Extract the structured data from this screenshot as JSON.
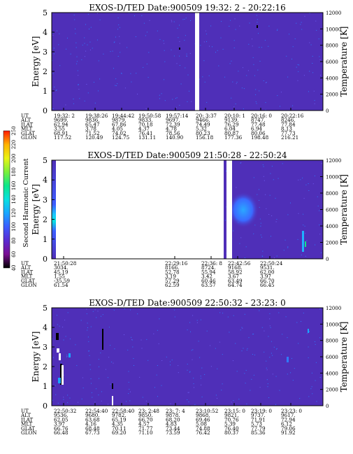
{
  "colors": {
    "background": "#4f2fb8",
    "gap": "#ffffff",
    "speckle": "#2f7bff",
    "axis": "#000000"
  },
  "colorbar": {
    "label": "Second Harmonic Current",
    "ticks": [
      "40",
      "60",
      "80",
      "100",
      "120",
      "140",
      "160",
      "180",
      "200",
      "220",
      "250"
    ],
    "stops": [
      "#000000",
      "#7a0d93",
      "#5a2bd1",
      "#3c5cff",
      "#19a6ff",
      "#08e0e0",
      "#0de78a",
      "#7bf03a",
      "#e9f414",
      "#ffb300",
      "#ff1a00"
    ]
  },
  "orbit_labels": [
    "UT",
    "ALT",
    "ILAT",
    "MLT",
    "GLAT",
    "GLON"
  ],
  "chart_data": [
    {
      "type": "heatmap",
      "title": "EXOS-D/TED   Date:900509  19:32: 2 - 20:22:16",
      "ylabel": "Energy [eV]",
      "y2label": "Temperature [K]",
      "ylim": [
        0,
        5
      ],
      "y2lim": [
        0,
        12000
      ],
      "yticks": [
        "0",
        "1",
        "2",
        "3",
        "4",
        "5"
      ],
      "y2ticks": [
        "0",
        "2000",
        "4000",
        "6000",
        "8000",
        "10000",
        "12000"
      ],
      "orbit": [
        [
          "19:32: 2",
          "9699.",
          "62.94",
          "3.55",
          "68.91",
          "117.52"
        ],
        [
          "19:38:26",
          "9836.",
          "65.47",
          "3.78",
          "71.52",
          "120.49"
        ],
        [
          "19:44:42",
          "9879.",
          "67.86",
          "4.05",
          "74.02",
          "124.75"
        ],
        [
          "19:50:58",
          "9833.",
          "70.18",
          "4.37",
          "76.41",
          "131.11"
        ],
        [
          "19:57:14",
          "9697.",
          "72.39",
          "4.78",
          "78.56",
          "140.90"
        ],
        [
          "20: 3:37",
          "9466.",
          "74.49",
          "5.32",
          "80.23",
          "156.18"
        ],
        [
          "20:10: 1",
          "9139.",
          "76.29",
          "6.04",
          "80.87",
          "177.36"
        ],
        [
          "20:16: 0",
          "8747.",
          "77.48",
          "6.94",
          "80.06",
          "198.48"
        ],
        [
          "20:22:16",
          "8246.",
          "77.84",
          "8.13",
          "77.73",
          "216.21"
        ]
      ]
    },
    {
      "type": "heatmap",
      "title": "EXOS-D/TED   Date:900509  21:50:28 - 22:50:24",
      "ylabel": "Energy [eV]",
      "y2label": "Temperature [K]",
      "ylim": [
        0,
        5
      ],
      "y2lim": [
        0,
        12000
      ],
      "yticks": [
        "0",
        "1",
        "2",
        "3",
        "4",
        "5"
      ],
      "y2ticks": [
        "0",
        "2000",
        "4000",
        "6000",
        "8000",
        "10000",
        "12000"
      ],
      "orbit": [
        [
          "21:50:28",
          "3034.",
          "45.19",
          "1.55",
          "-35.59",
          "61.54"
        ],
        [
          "22:29:16",
          "8166.",
          "52.78",
          "3.19",
          "57.29",
          "62.59"
        ],
        [
          "22:36: 8",
          "8724.",
          "55.94",
          "3.42",
          "60.46",
          "63.57"
        ],
        [
          "22:42:56",
          "9168.",
          "58.92",
          "3.67",
          "63.49",
          "64.74"
        ],
        [
          "22:50:24",
          "9531.",
          "62.00",
          "3.97",
          "66.70",
          "66.45"
        ]
      ]
    },
    {
      "type": "heatmap",
      "title": "EXOS-D/TED   Date:900509  22:50:32 - 23:23: 0",
      "ylabel": "Energy [eV]",
      "y2label": "Temperature [K]",
      "ylim": [
        0,
        5
      ],
      "y2lim": [
        0,
        12000
      ],
      "yticks": [
        "0",
        "1",
        "2",
        "3",
        "4",
        "5"
      ],
      "y2ticks": [
        "0",
        "2000",
        "4000",
        "6000",
        "8000",
        "10000",
        "12000"
      ],
      "orbit": [
        [
          "22:50:32",
          "9536.",
          "62.05",
          "3.97",
          "66.76",
          "66.48"
        ],
        [
          "22:54:40",
          "9680.",
          "63.68",
          "4.16",
          "68.48",
          "67.73"
        ],
        [
          "22:58:40",
          "9782.",
          "65.19",
          "4.35",
          "70.11",
          "69.20"
        ],
        [
          "23: 2:48",
          "9850.",
          "66.70",
          "4.57",
          "71.77",
          "71.10"
        ],
        [
          "23: 7: 4",
          "9878.",
          "68.20",
          "4.83",
          "73.44",
          "73.59"
        ],
        [
          "23:10:52",
          "9868.",
          "69.46",
          "5.08",
          "74.88",
          "76.42"
        ],
        [
          "23:15: 0",
          "9821.",
          "70.76",
          "5.39",
          "76.40",
          "80.37"
        ],
        [
          "23:19: 0",
          "9737.",
          "71.91",
          "5.73",
          "77.79",
          "85.36"
        ],
        [
          "23:23: 0",
          "9617.",
          "72.94",
          "6.12",
          "79.06",
          "91.92"
        ]
      ]
    }
  ]
}
